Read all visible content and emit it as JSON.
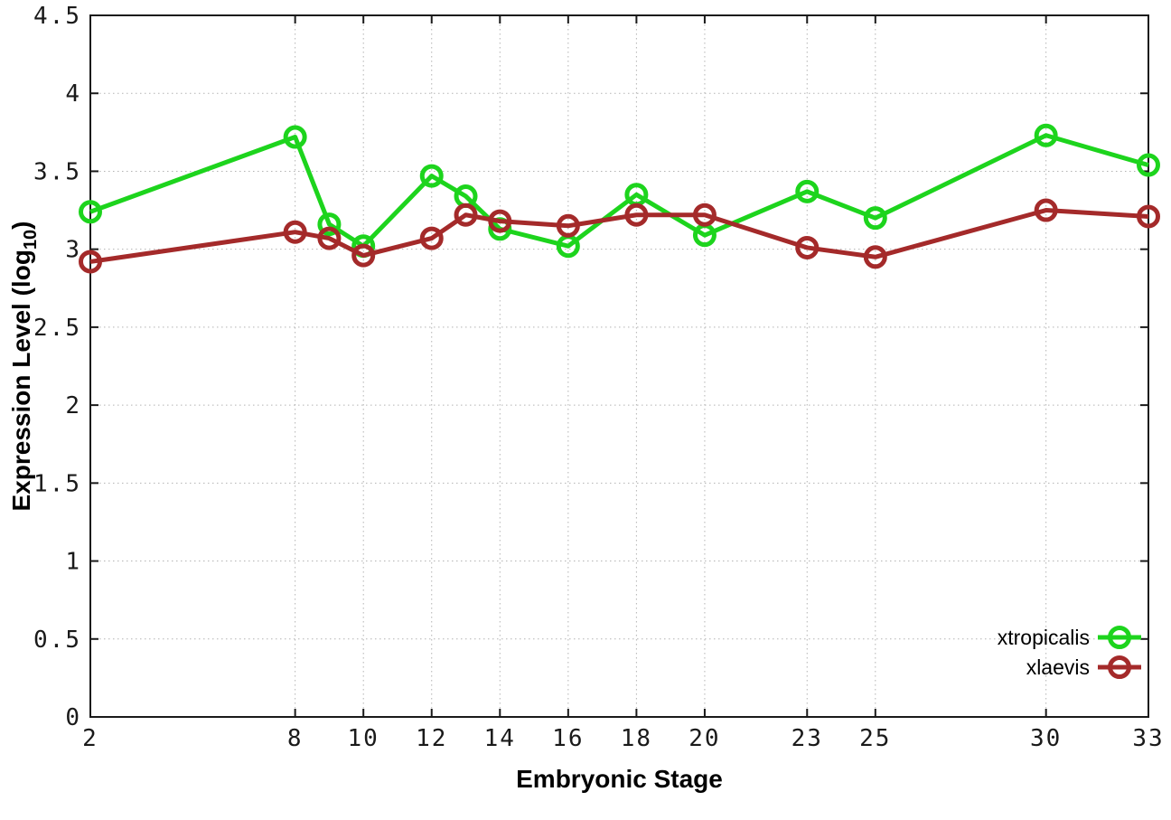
{
  "page": {
    "background": "#ffffff"
  },
  "labels": {
    "xlabel": "Embryonic Stage",
    "ylabel_prefix": "Expression Level (log",
    "ylabel_subscript": "10",
    "ylabel_suffix": ")"
  },
  "chart_data": {
    "type": "line",
    "title": "",
    "xlabel": "Embryonic Stage",
    "ylabel": "Expression Level (log10)",
    "xlim": [
      2,
      33
    ],
    "ylim": [
      0,
      4.5
    ],
    "grid": true,
    "grid_style": "dotted",
    "legend_position": "inside bottom-right",
    "axis_color": "#1a1a1a",
    "grid_color": "#b3b3b3",
    "text_color": "#1a1a1a",
    "x": [
      2,
      8,
      9,
      10,
      12,
      13,
      14,
      16,
      18,
      20,
      23,
      25,
      30,
      33
    ],
    "xtick_values": [
      2,
      8,
      10,
      12,
      14,
      16,
      18,
      20,
      23,
      25,
      30,
      33
    ],
    "xtick_labels": [
      "2",
      "8",
      "10",
      "12",
      "14",
      "16",
      "18",
      "20",
      "23",
      "25",
      "30",
      "33"
    ],
    "ytick_values": [
      0,
      0.5,
      1,
      1.5,
      2,
      2.5,
      3,
      3.5,
      4,
      4.5
    ],
    "ytick_labels": [
      "0",
      "0.5",
      "1",
      "1.5",
      "2",
      "2.5",
      "3",
      "3.5",
      "4",
      "4.5"
    ],
    "series": [
      {
        "name": "xtropicalis",
        "color": "#1dd41d",
        "marker": "open-circle",
        "values": [
          3.24,
          3.72,
          3.16,
          3.02,
          3.47,
          3.34,
          3.13,
          3.02,
          3.35,
          3.09,
          3.37,
          3.2,
          3.73,
          3.54
        ]
      },
      {
        "name": "xlaevis",
        "color": "#a42a2a",
        "marker": "open-circle",
        "values": [
          2.92,
          3.11,
          3.07,
          2.96,
          3.07,
          3.22,
          3.18,
          3.15,
          3.22,
          3.22,
          3.01,
          2.95,
          3.25,
          3.21
        ]
      }
    ]
  }
}
